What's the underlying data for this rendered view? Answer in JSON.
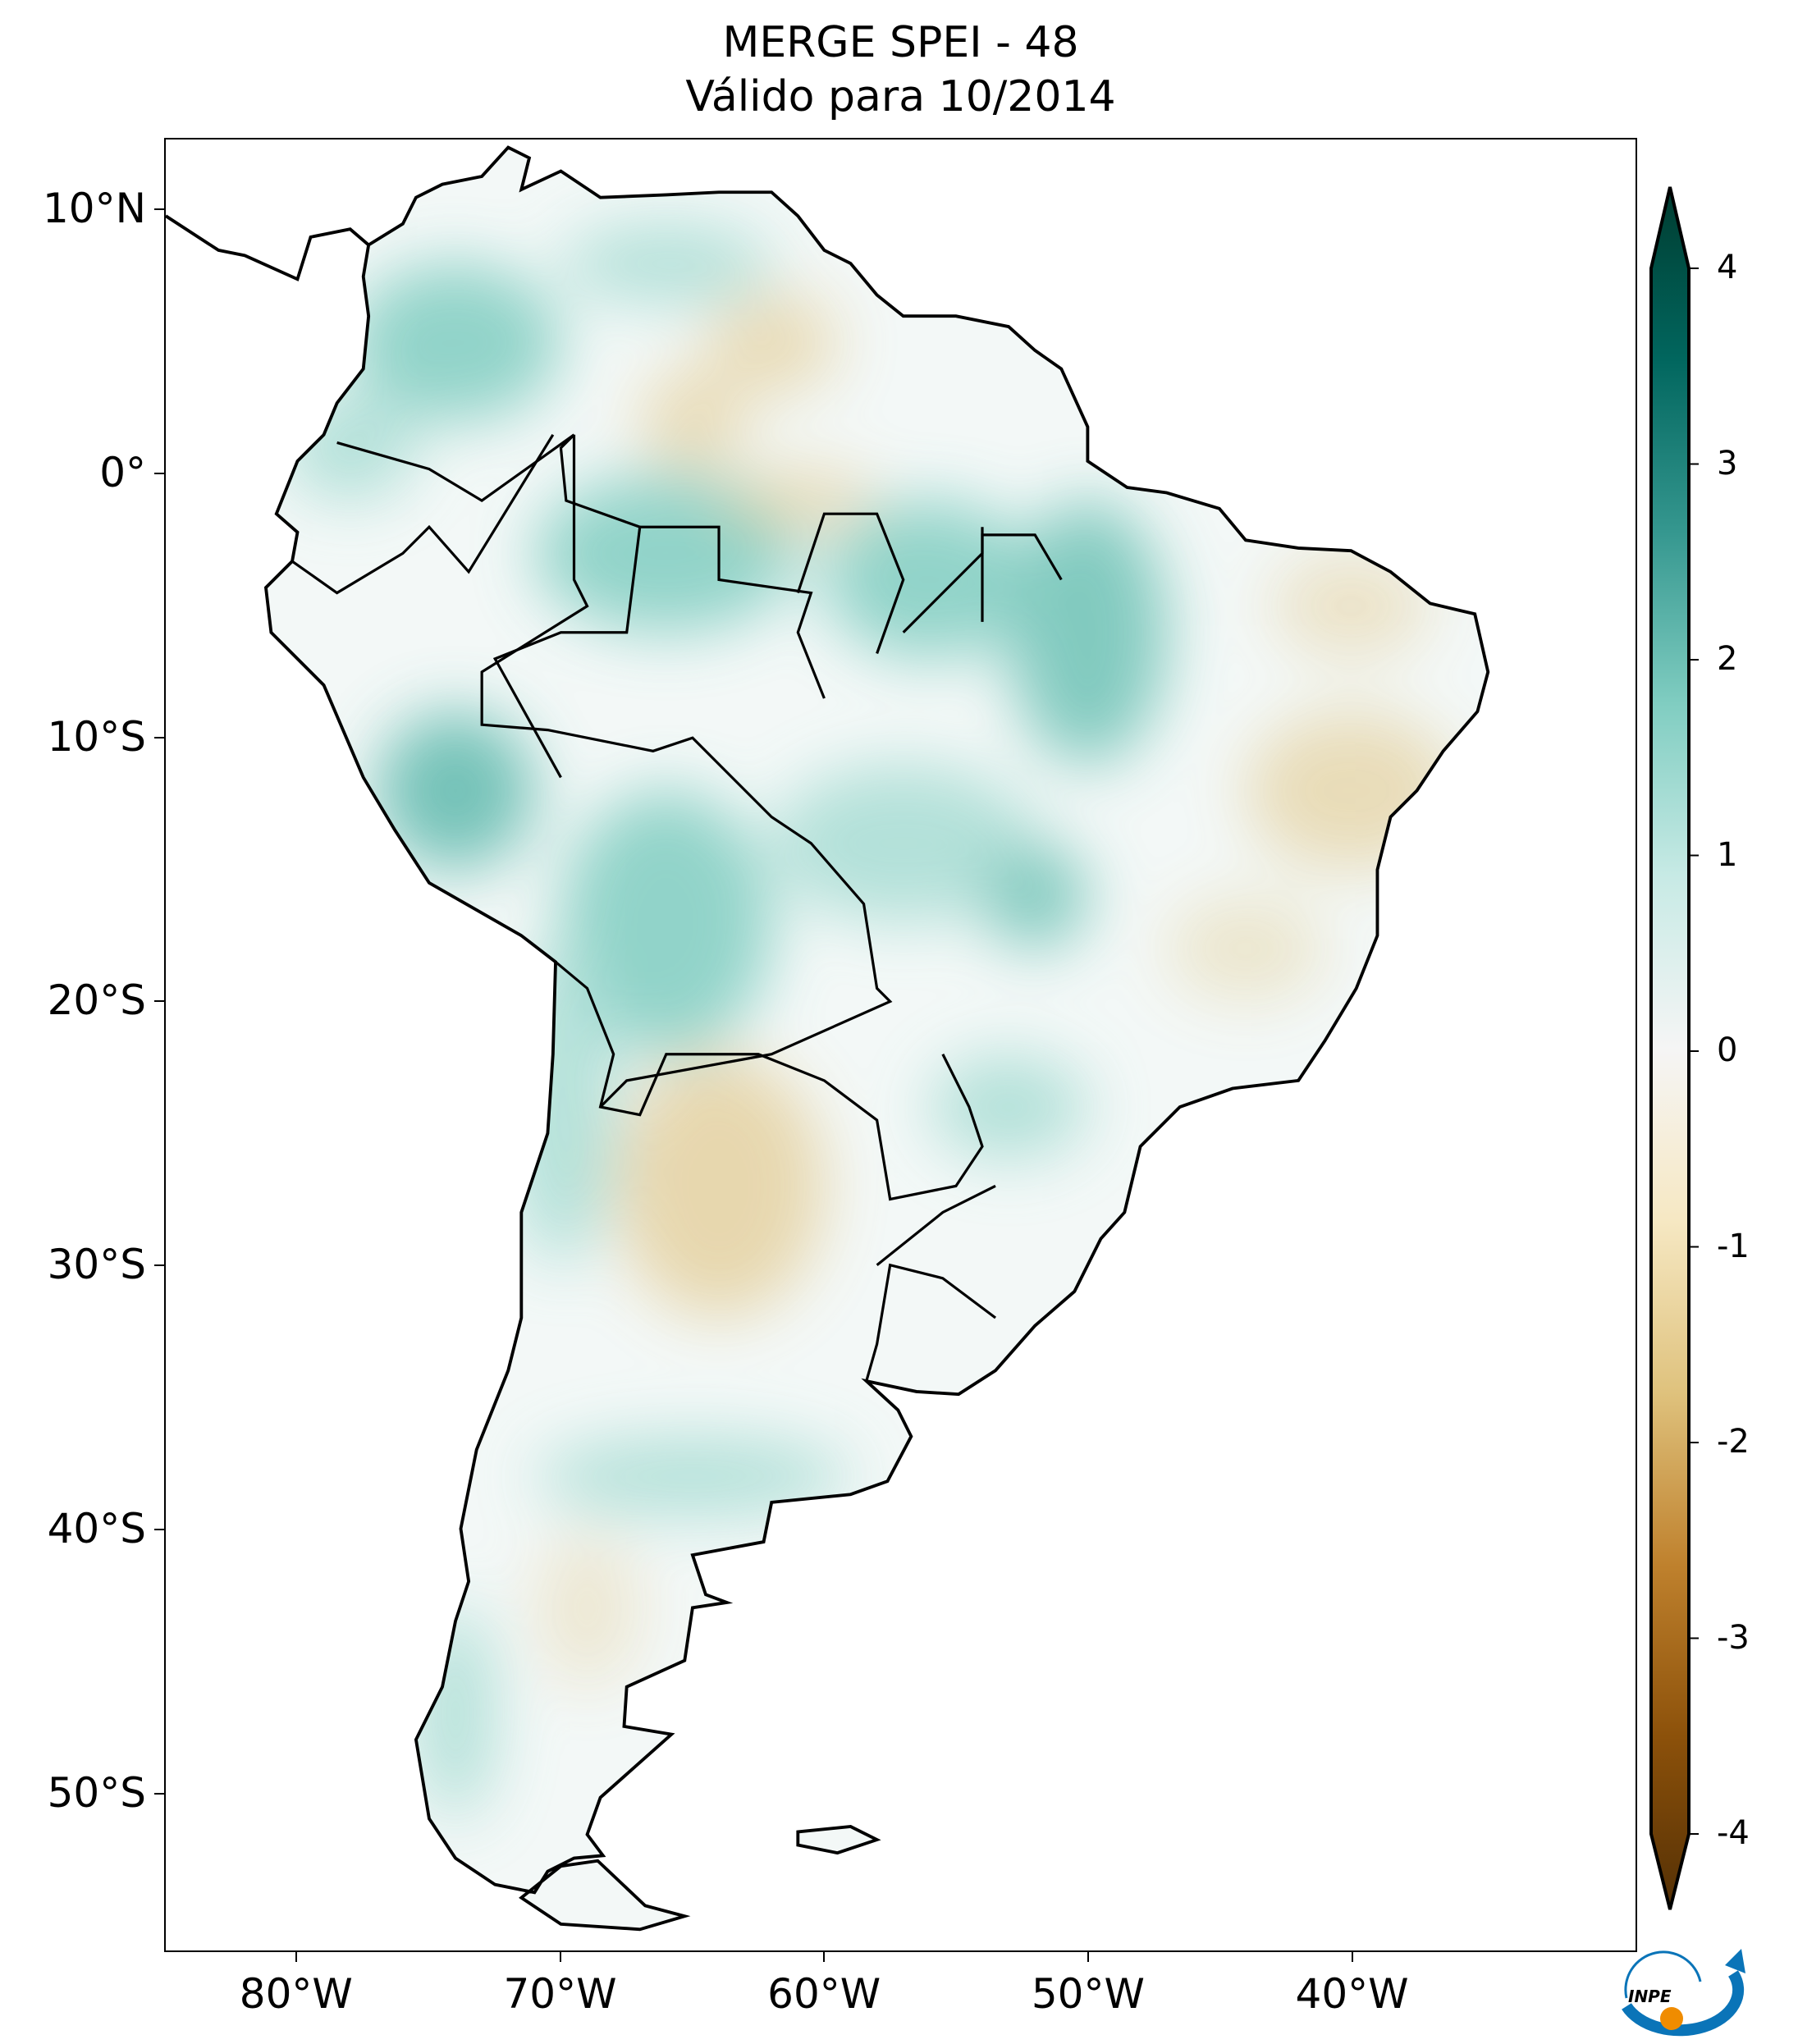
{
  "title": {
    "line1": "MERGE   SPEI - 48",
    "line2": "Válido para 10/2014"
  },
  "map": {
    "extent_lon": [
      -85,
      -29.2
    ],
    "extent_lat": [
      -56,
      12.7
    ],
    "lon_ticks": [
      {
        "value": -80,
        "label": "80°W"
      },
      {
        "value": -70,
        "label": "70°W"
      },
      {
        "value": -60,
        "label": "60°W"
      },
      {
        "value": -50,
        "label": "50°W"
      },
      {
        "value": -40,
        "label": "40°W"
      }
    ],
    "lat_ticks": [
      {
        "value": 10,
        "label": "10°N"
      },
      {
        "value": 0,
        "label": "0°"
      },
      {
        "value": -10,
        "label": "10°S"
      },
      {
        "value": -20,
        "label": "20°S"
      },
      {
        "value": -30,
        "label": "30°S"
      },
      {
        "value": -40,
        "label": "40°S"
      },
      {
        "value": -50,
        "label": "50°S"
      }
    ]
  },
  "colorbar": {
    "range": [
      -4,
      4
    ],
    "ticks": [
      {
        "value": 4,
        "label": "4"
      },
      {
        "value": 3,
        "label": "3"
      },
      {
        "value": 2,
        "label": "2"
      },
      {
        "value": 1,
        "label": "1"
      },
      {
        "value": 0,
        "label": "0"
      },
      {
        "value": -1,
        "label": "-1"
      },
      {
        "value": -2,
        "label": "-2"
      },
      {
        "value": -3,
        "label": "-3"
      },
      {
        "value": -4,
        "label": "-4"
      }
    ],
    "colors": [
      "#543005",
      "#8c510a",
      "#bf812d",
      "#dfc27d",
      "#f6e8c3",
      "#f5f5f5",
      "#c7eae5",
      "#80cdc1",
      "#35978f",
      "#01665e",
      "#003c30"
    ]
  },
  "logo": {
    "text": "INPE",
    "blue": "#0a74b8",
    "orange": "#f08c00"
  }
}
